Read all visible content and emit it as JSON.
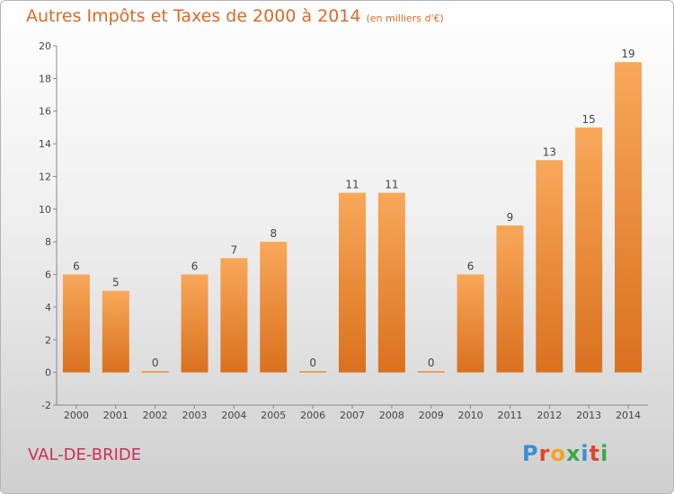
{
  "page": {
    "title": "Autres Impôts et Taxes de 2000 à 2014",
    "title_unit": "(en milliers d'€)",
    "commune": "VAL-DE-BRIDE",
    "logo_text": "Proxiti",
    "logo_colors": [
      "#3a8fd0",
      "#e0462a",
      "#f3a51c",
      "#3aa84a",
      "#3a8fd0",
      "#e0462a",
      "#3aa84a"
    ]
  },
  "chart_data": {
    "type": "bar",
    "title": "Autres Impôts et Taxes de 2000 à 2014",
    "unit": "(en milliers d'€)",
    "categories": [
      "2000",
      "2001",
      "2002",
      "2003",
      "2004",
      "2005",
      "2006",
      "2007",
      "2008",
      "2009",
      "2010",
      "2011",
      "2012",
      "2013",
      "2014"
    ],
    "values": [
      6,
      5,
      0,
      6,
      7,
      8,
      0,
      11,
      11,
      0,
      6,
      9,
      13,
      15,
      19
    ],
    "ylim": [
      -2,
      20
    ],
    "yticks": [
      -2,
      0,
      2,
      4,
      6,
      8,
      10,
      12,
      14,
      16,
      18,
      20
    ],
    "bar_color_top": "#f8a85a",
    "bar_color_bottom": "#d9711f",
    "grid": false,
    "legend": "none"
  }
}
